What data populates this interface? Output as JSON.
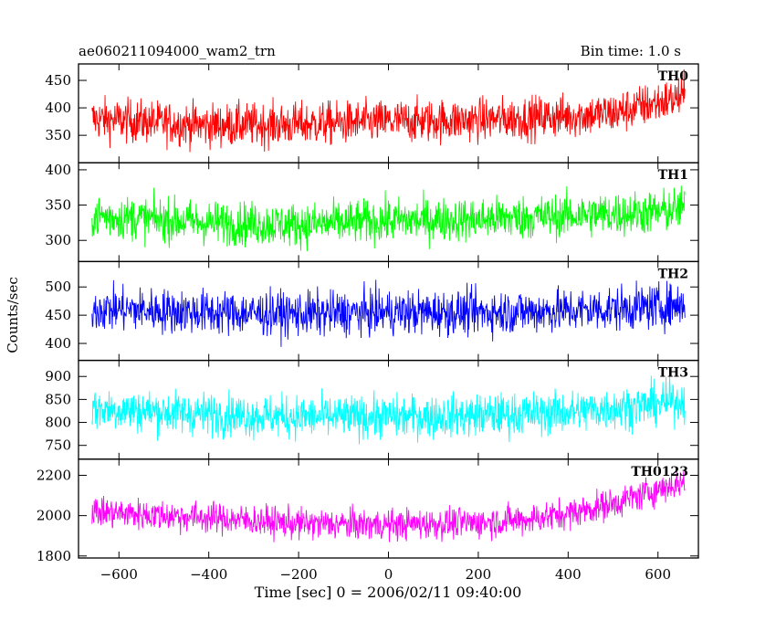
{
  "header": {
    "left": "ae060211094000_wam2_trn",
    "right": "Bin time: 1.0 s"
  },
  "chart_data": {
    "type": "line",
    "title": "ae060211094000_wam2_trn",
    "subtitle": "Bin time: 1.0 s",
    "xlabel": "Time [sec] 0 = 2006/02/11 09:40:00",
    "ylabel": "Counts/sec",
    "xlim": [
      -690,
      690
    ],
    "x_ticks": [
      -600,
      -400,
      -200,
      0,
      200,
      400,
      600
    ],
    "x_tick_labels": [
      "−600",
      "−400",
      "−200",
      "0",
      "200",
      "400",
      "600"
    ],
    "x_range": [
      -660,
      660
    ],
    "bin_time_s": 1.0,
    "grid": false,
    "legend": "none",
    "series": [
      {
        "name": "TH0",
        "color": "#ff0000",
        "ylim": [
          300,
          480
        ],
        "y_ticks": [
          350,
          400,
          450
        ],
        "x_trend": [
          -660,
          -400,
          -200,
          0,
          200,
          400,
          500,
          600,
          660
        ],
        "y_trend": [
          380,
          368,
          370,
          375,
          378,
          385,
          390,
          410,
          420
        ],
        "y_noise": 28,
        "y_spread_max": 480
      },
      {
        "name": "TH1",
        "color": "#00ff00",
        "ylim": [
          270,
          410
        ],
        "y_ticks": [
          300,
          350,
          400
        ],
        "x_trend": [
          -660,
          -400,
          -200,
          0,
          200,
          400,
          600,
          660
        ],
        "y_trend": [
          335,
          325,
          322,
          328,
          330,
          335,
          340,
          345
        ],
        "y_noise": 22,
        "y_spread_max": 410
      },
      {
        "name": "TH2",
        "color": "#0000ff",
        "ylim": [
          370,
          545
        ],
        "y_ticks": [
          400,
          450,
          500
        ],
        "x_trend": [
          -660,
          -400,
          -200,
          0,
          200,
          400,
          600,
          660
        ],
        "y_trend": [
          462,
          455,
          452,
          455,
          455,
          458,
          465,
          470
        ],
        "y_noise": 28,
        "y_spread_max": 545
      },
      {
        "name": "TH3",
        "color": "#00ffff",
        "ylim": [
          720,
          935
        ],
        "y_ticks": [
          750,
          800,
          850,
          900
        ],
        "x_trend": [
          -660,
          -400,
          -200,
          0,
          200,
          400,
          600,
          660
        ],
        "y_trend": [
          830,
          818,
          812,
          812,
          815,
          822,
          840,
          848
        ],
        "y_noise": 33,
        "y_spread_max": 935
      },
      {
        "name": "TH0123",
        "color": "#ff00ff",
        "ylim": [
          1790,
          2280
        ],
        "y_ticks": [
          1800,
          2000,
          2200
        ],
        "x_trend": [
          -660,
          -400,
          -200,
          0,
          200,
          300,
          400,
          500,
          600,
          660
        ],
        "y_trend": [
          2020,
          1990,
          1960,
          1955,
          1965,
          1980,
          2010,
          2060,
          2130,
          2170
        ],
        "y_noise": 55,
        "y_spread_max": 2280
      }
    ]
  }
}
